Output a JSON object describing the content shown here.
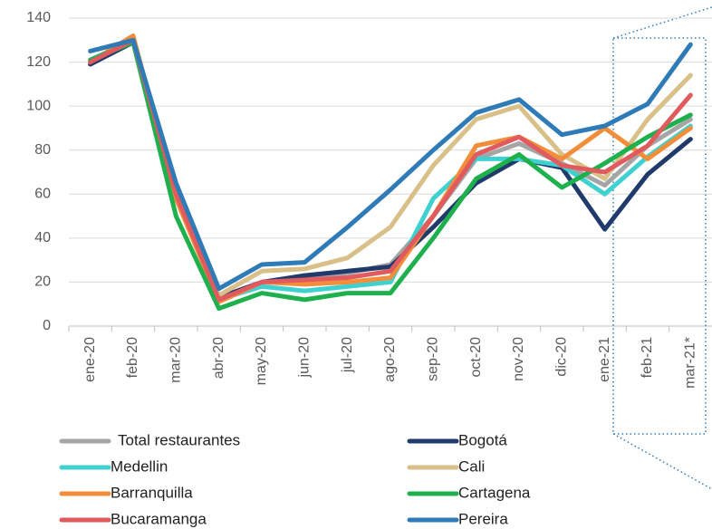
{
  "chart_data": {
    "type": "line",
    "categories": [
      "ene-20",
      "feb-20",
      "mar-20",
      "abr-20",
      "may-20",
      "jun-20",
      "jul-20",
      "ago-20",
      "sep-20",
      "oct-20",
      "nov-20",
      "dic-20",
      "ene-21",
      "feb-21",
      "mar-21*"
    ],
    "ylim": [
      0,
      140
    ],
    "yticks": [
      0,
      20,
      40,
      60,
      80,
      100,
      120,
      140
    ],
    "grid": true,
    "series": [
      {
        "name": "Total restaurantes",
        "color": "#a5a5a5",
        "values": [
          120,
          130,
          60,
          13,
          20,
          21,
          24,
          28,
          50,
          76,
          83,
          74,
          64,
          82,
          94
        ]
      },
      {
        "name": "Bogotá",
        "color": "#1f3a6b",
        "values": [
          119,
          129,
          60,
          13,
          20,
          23,
          25,
          27,
          45,
          65,
          76,
          72,
          44,
          69,
          85
        ]
      },
      {
        "name": "Medellin",
        "color": "#3fd0d0",
        "values": [
          121,
          130,
          58,
          12,
          18,
          16,
          18,
          20,
          58,
          76,
          76,
          73,
          60,
          77,
          91
        ]
      },
      {
        "name": "Cali",
        "color": "#d8c088",
        "values": [
          120,
          131,
          62,
          14,
          25,
          26,
          31,
          45,
          73,
          94,
          100,
          78,
          67,
          94,
          114
        ]
      },
      {
        "name": "Barranquilla",
        "color": "#f28e3a",
        "values": [
          120,
          132,
          58,
          11,
          20,
          19,
          20,
          22,
          50,
          82,
          86,
          76,
          90,
          76,
          90
        ]
      },
      {
        "name": "Cartagena",
        "color": "#1fb04e",
        "values": [
          121,
          129,
          50,
          8,
          15,
          12,
          15,
          15,
          40,
          67,
          78,
          63,
          74,
          86,
          96
        ]
      },
      {
        "name": "Bucaramanga",
        "color": "#e05a5e",
        "values": [
          120,
          130,
          60,
          12,
          20,
          21,
          22,
          25,
          50,
          78,
          86,
          73,
          70,
          82,
          105
        ]
      },
      {
        "name": "Pereira",
        "color": "#2e7bb8",
        "values": [
          125,
          130,
          65,
          17,
          28,
          29,
          45,
          62,
          80,
          97,
          103,
          87,
          91,
          101,
          128
        ]
      }
    ]
  }
}
